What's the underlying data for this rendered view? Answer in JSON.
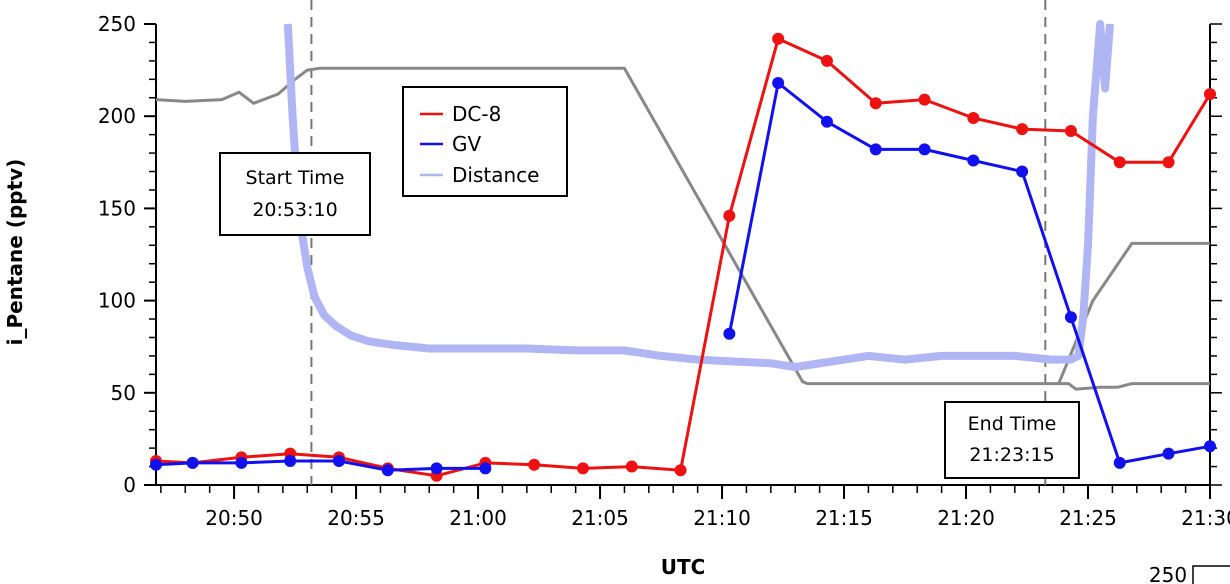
{
  "chart_data": {
    "type": "line",
    "title": "",
    "xlabel": "UTC",
    "ylabel": "i_Pentane (pptv)",
    "x_unit": "minutes after 20:45",
    "xlim": [
      1.8,
      45
    ],
    "ylim": [
      0,
      250
    ],
    "x_ticks": [
      {
        "x": 5,
        "label": "20:50"
      },
      {
        "x": 10,
        "label": "20:55"
      },
      {
        "x": 15,
        "label": "21:00"
      },
      {
        "x": 20,
        "label": "21:05"
      },
      {
        "x": 25,
        "label": "21:10"
      },
      {
        "x": 30,
        "label": "21:15"
      },
      {
        "x": 35,
        "label": "21:20"
      },
      {
        "x": 40,
        "label": "21:25"
      },
      {
        "x": 45,
        "label": "21:30"
      }
    ],
    "y_ticks": [
      0,
      50,
      100,
      150,
      200,
      250
    ],
    "right_axis_tick_label": "250",
    "legend": {
      "placement": "top-center"
    },
    "series": [
      {
        "name": "DC-8",
        "color": "#ee1111",
        "markers": true,
        "x": [
          1.8,
          3.3,
          5.3,
          7.3,
          9.3,
          11.3,
          13.3,
          15.3,
          17.3,
          19.3,
          21.3,
          23.3,
          25.3,
          27.3,
          29.3,
          31.3,
          33.3,
          35.3,
          37.3,
          39.3,
          41.3,
          43.3,
          45
        ],
        "y": [
          13,
          12,
          15,
          17,
          15,
          9,
          5,
          12,
          11,
          9,
          10,
          8,
          146,
          242,
          230,
          207,
          209,
          199,
          193,
          192,
          175,
          175,
          212
        ]
      },
      {
        "name": "GV",
        "color": "#1111ee",
        "markers": true,
        "x": [
          1.8,
          3.3,
          5.3,
          7.3,
          9.3,
          11.3,
          13.3,
          15.3,
          25.3,
          27.3,
          29.3,
          31.3,
          33.3,
          35.3,
          37.3,
          39.3,
          41.3,
          43.3,
          45
        ],
        "y": [
          11,
          12,
          12,
          13,
          13,
          8,
          9,
          9,
          82,
          218,
          197,
          182,
          182,
          176,
          170,
          91,
          12,
          17,
          21
        ],
        "break_after_index": 7
      },
      {
        "name": "Distance",
        "color": "#b0b6f4",
        "markers": false,
        "x": [
          7.2,
          7.4,
          7.6,
          7.8,
          8.0,
          8.3,
          8.7,
          9.2,
          9.8,
          10.5,
          11.5,
          13,
          15,
          17,
          19,
          21,
          22.5,
          24,
          25.5,
          27,
          28,
          29.5,
          31,
          32.5,
          34,
          35.5,
          37,
          38.5,
          39.3,
          39.6,
          39.8,
          40.0,
          40.2,
          40.5,
          40.7,
          40.9
        ],
        "y": [
          250,
          200,
          160,
          135,
          118,
          102,
          92,
          86,
          81,
          78,
          76,
          74,
          74,
          74,
          73,
          73,
          70,
          68,
          67,
          66,
          64,
          67,
          70,
          68,
          70,
          70,
          70,
          68,
          68,
          70,
          90,
          130,
          200,
          250,
          215,
          250
        ]
      },
      {
        "name": "",
        "color": "#888888",
        "markers": false,
        "x": [
          1.8,
          3,
          4.5,
          5.2,
          5.8,
          6.8,
          7.5,
          8,
          8.5,
          10,
          15,
          20,
          21,
          28.3,
          28.5,
          32,
          35,
          38,
          39.2,
          39.5,
          40.5,
          41.2,
          41.8,
          43,
          45
        ],
        "y": [
          209,
          208,
          209,
          213,
          207,
          212,
          220,
          225,
          226,
          226,
          226,
          226,
          226,
          56,
          55,
          55,
          55,
          55,
          55,
          52,
          53,
          53,
          55,
          55,
          55
        ]
      },
      {
        "name": "",
        "color": "#888888",
        "markers": false,
        "x": [
          38.8,
          40.2,
          41.8,
          43,
          45
        ],
        "y": [
          55,
          100,
          131,
          131,
          131
        ]
      }
    ],
    "annotations": [
      {
        "name": "start-time",
        "lines": [
          "Start Time",
          "20:53:10"
        ],
        "vline_x": 8.17
      },
      {
        "name": "end-time",
        "lines": [
          "End Time",
          "21:23:15"
        ],
        "vline_x": 38.25
      }
    ]
  }
}
